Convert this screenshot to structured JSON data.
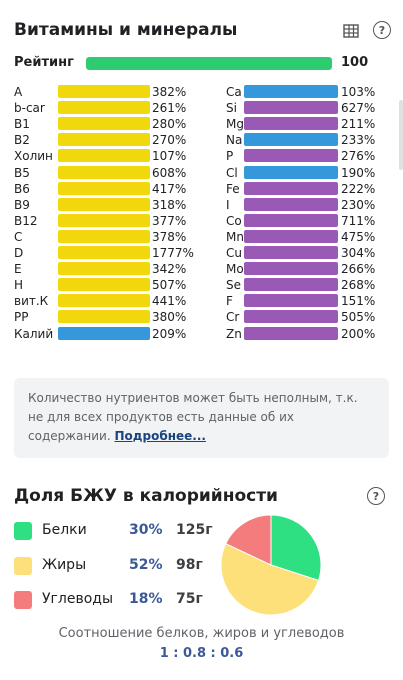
{
  "vitamins_section": {
    "title": "Витамины и минералы",
    "rating_label": "Рейтинг",
    "rating_value": "100",
    "rating_fraction": 1.0,
    "rating_color": "#2ecc71"
  },
  "colors": {
    "vitamin": "#f1d80c",
    "mineral_purple": "#9b59b6",
    "mineral_blue": "#3498db",
    "protein": "#2ee082",
    "fat": "#fde07a",
    "carb": "#f47c7c"
  },
  "left_column": [
    {
      "label": "A",
      "pct": "382%",
      "color": "yellow"
    },
    {
      "label": "b-car",
      "pct": "261%",
      "color": "yellow"
    },
    {
      "label": "B1",
      "pct": "280%",
      "color": "yellow"
    },
    {
      "label": "B2",
      "pct": "270%",
      "color": "yellow"
    },
    {
      "label": "Холин",
      "pct": "107%",
      "color": "yellow"
    },
    {
      "label": "B5",
      "pct": "608%",
      "color": "yellow"
    },
    {
      "label": "B6",
      "pct": "417%",
      "color": "yellow"
    },
    {
      "label": "B9",
      "pct": "318%",
      "color": "yellow"
    },
    {
      "label": "B12",
      "pct": "377%",
      "color": "yellow"
    },
    {
      "label": "C",
      "pct": "378%",
      "color": "yellow"
    },
    {
      "label": "D",
      "pct": "1777%",
      "color": "yellow"
    },
    {
      "label": "E",
      "pct": "342%",
      "color": "yellow"
    },
    {
      "label": "H",
      "pct": "507%",
      "color": "yellow"
    },
    {
      "label": "вит.К",
      "pct": "441%",
      "color": "yellow"
    },
    {
      "label": "PP",
      "pct": "380%",
      "color": "yellow"
    },
    {
      "label": "Калий",
      "pct": "209%",
      "color": "blue"
    }
  ],
  "right_column": [
    {
      "label": "Ca",
      "pct": "103%",
      "color": "blue"
    },
    {
      "label": "Si",
      "pct": "627%",
      "color": "purple"
    },
    {
      "label": "Mg",
      "pct": "211%",
      "color": "purple"
    },
    {
      "label": "Na",
      "pct": "233%",
      "color": "blue"
    },
    {
      "label": "P",
      "pct": "276%",
      "color": "purple"
    },
    {
      "label": "Cl",
      "pct": "190%",
      "color": "blue"
    },
    {
      "label": "Fe",
      "pct": "222%",
      "color": "purple"
    },
    {
      "label": "I",
      "pct": "230%",
      "color": "purple"
    },
    {
      "label": "Co",
      "pct": "711%",
      "color": "purple"
    },
    {
      "label": "Mn",
      "pct": "475%",
      "color": "purple"
    },
    {
      "label": "Cu",
      "pct": "304%",
      "color": "purple"
    },
    {
      "label": "Mo",
      "pct": "266%",
      "color": "purple"
    },
    {
      "label": "Se",
      "pct": "268%",
      "color": "purple"
    },
    {
      "label": "F",
      "pct": "151%",
      "color": "purple"
    },
    {
      "label": "Cr",
      "pct": "505%",
      "color": "purple"
    },
    {
      "label": "Zn",
      "pct": "200%",
      "color": "purple"
    }
  ],
  "info": {
    "text": "Количество нутриентов может быть неполным, т.к. не для всех продуктов есть данные об их содержании.",
    "link": "Подробнее..."
  },
  "macros_section": {
    "title": "Доля БЖУ в калорийности",
    "items": [
      {
        "name": "Белки",
        "pct": "30%",
        "grams": "125г",
        "share": 30,
        "color": "#2ee082"
      },
      {
        "name": "Жиры",
        "pct": "52%",
        "grams": "98г",
        "share": 52,
        "color": "#fde07a"
      },
      {
        "name": "Углеводы",
        "pct": "18%",
        "grams": "75г",
        "share": 18,
        "color": "#f47c7c"
      }
    ],
    "ratio_caption": "Соотношение белков, жиров и углеводов",
    "ratio_value": "1 : 0.8 : 0.6"
  },
  "icons": {
    "table": "table-icon",
    "help": "question-circle-icon"
  }
}
